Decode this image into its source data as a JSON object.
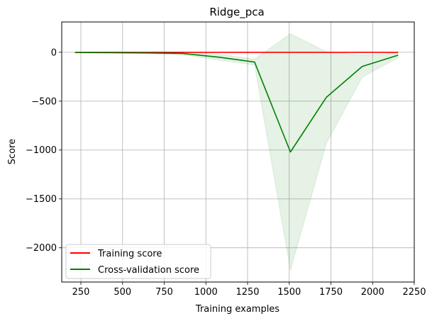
{
  "chart_data": {
    "type": "line",
    "title": "Ridge_pca",
    "xlabel": "Training examples",
    "ylabel": "Score",
    "xlim": [
      135,
      2250
    ],
    "ylim": [
      -2350,
      310
    ],
    "xticks": [
      250,
      500,
      750,
      1000,
      1250,
      1500,
      1750,
      2000,
      2250
    ],
    "xtick_labels": [
      "250",
      "500",
      "750",
      "1000",
      "1250",
      "1500",
      "1750",
      "2000",
      "2250"
    ],
    "yticks": [
      0,
      -500,
      -1000,
      -1500,
      -2000
    ],
    "ytick_labels": [
      "0",
      "−500",
      "−1000",
      "−1500",
      "−2000"
    ],
    "grid": true,
    "legend_position": "lower-left",
    "x": [
      215,
      431,
      646,
      861,
      1077,
      1292,
      1507,
      1723,
      1938,
      2153
    ],
    "series": [
      {
        "name": "Training score",
        "color": "#ff0000",
        "values": [
          0,
          0,
          0,
          0,
          0,
          0,
          0,
          0,
          0,
          0
        ]
      },
      {
        "name": "Cross-validation score",
        "color": "#008000",
        "band_color": "#008000",
        "values": [
          -2,
          -4,
          -7,
          -12,
          -50,
          -100,
          -1020,
          -460,
          -145,
          -30
        ],
        "band_upper": [
          2,
          2,
          2,
          2,
          -20,
          -70,
          190,
          5,
          -30,
          -5
        ],
        "band_lower": [
          -6,
          -10,
          -16,
          -25,
          -80,
          -130,
          -2230,
          -930,
          -255,
          -55
        ]
      }
    ]
  }
}
